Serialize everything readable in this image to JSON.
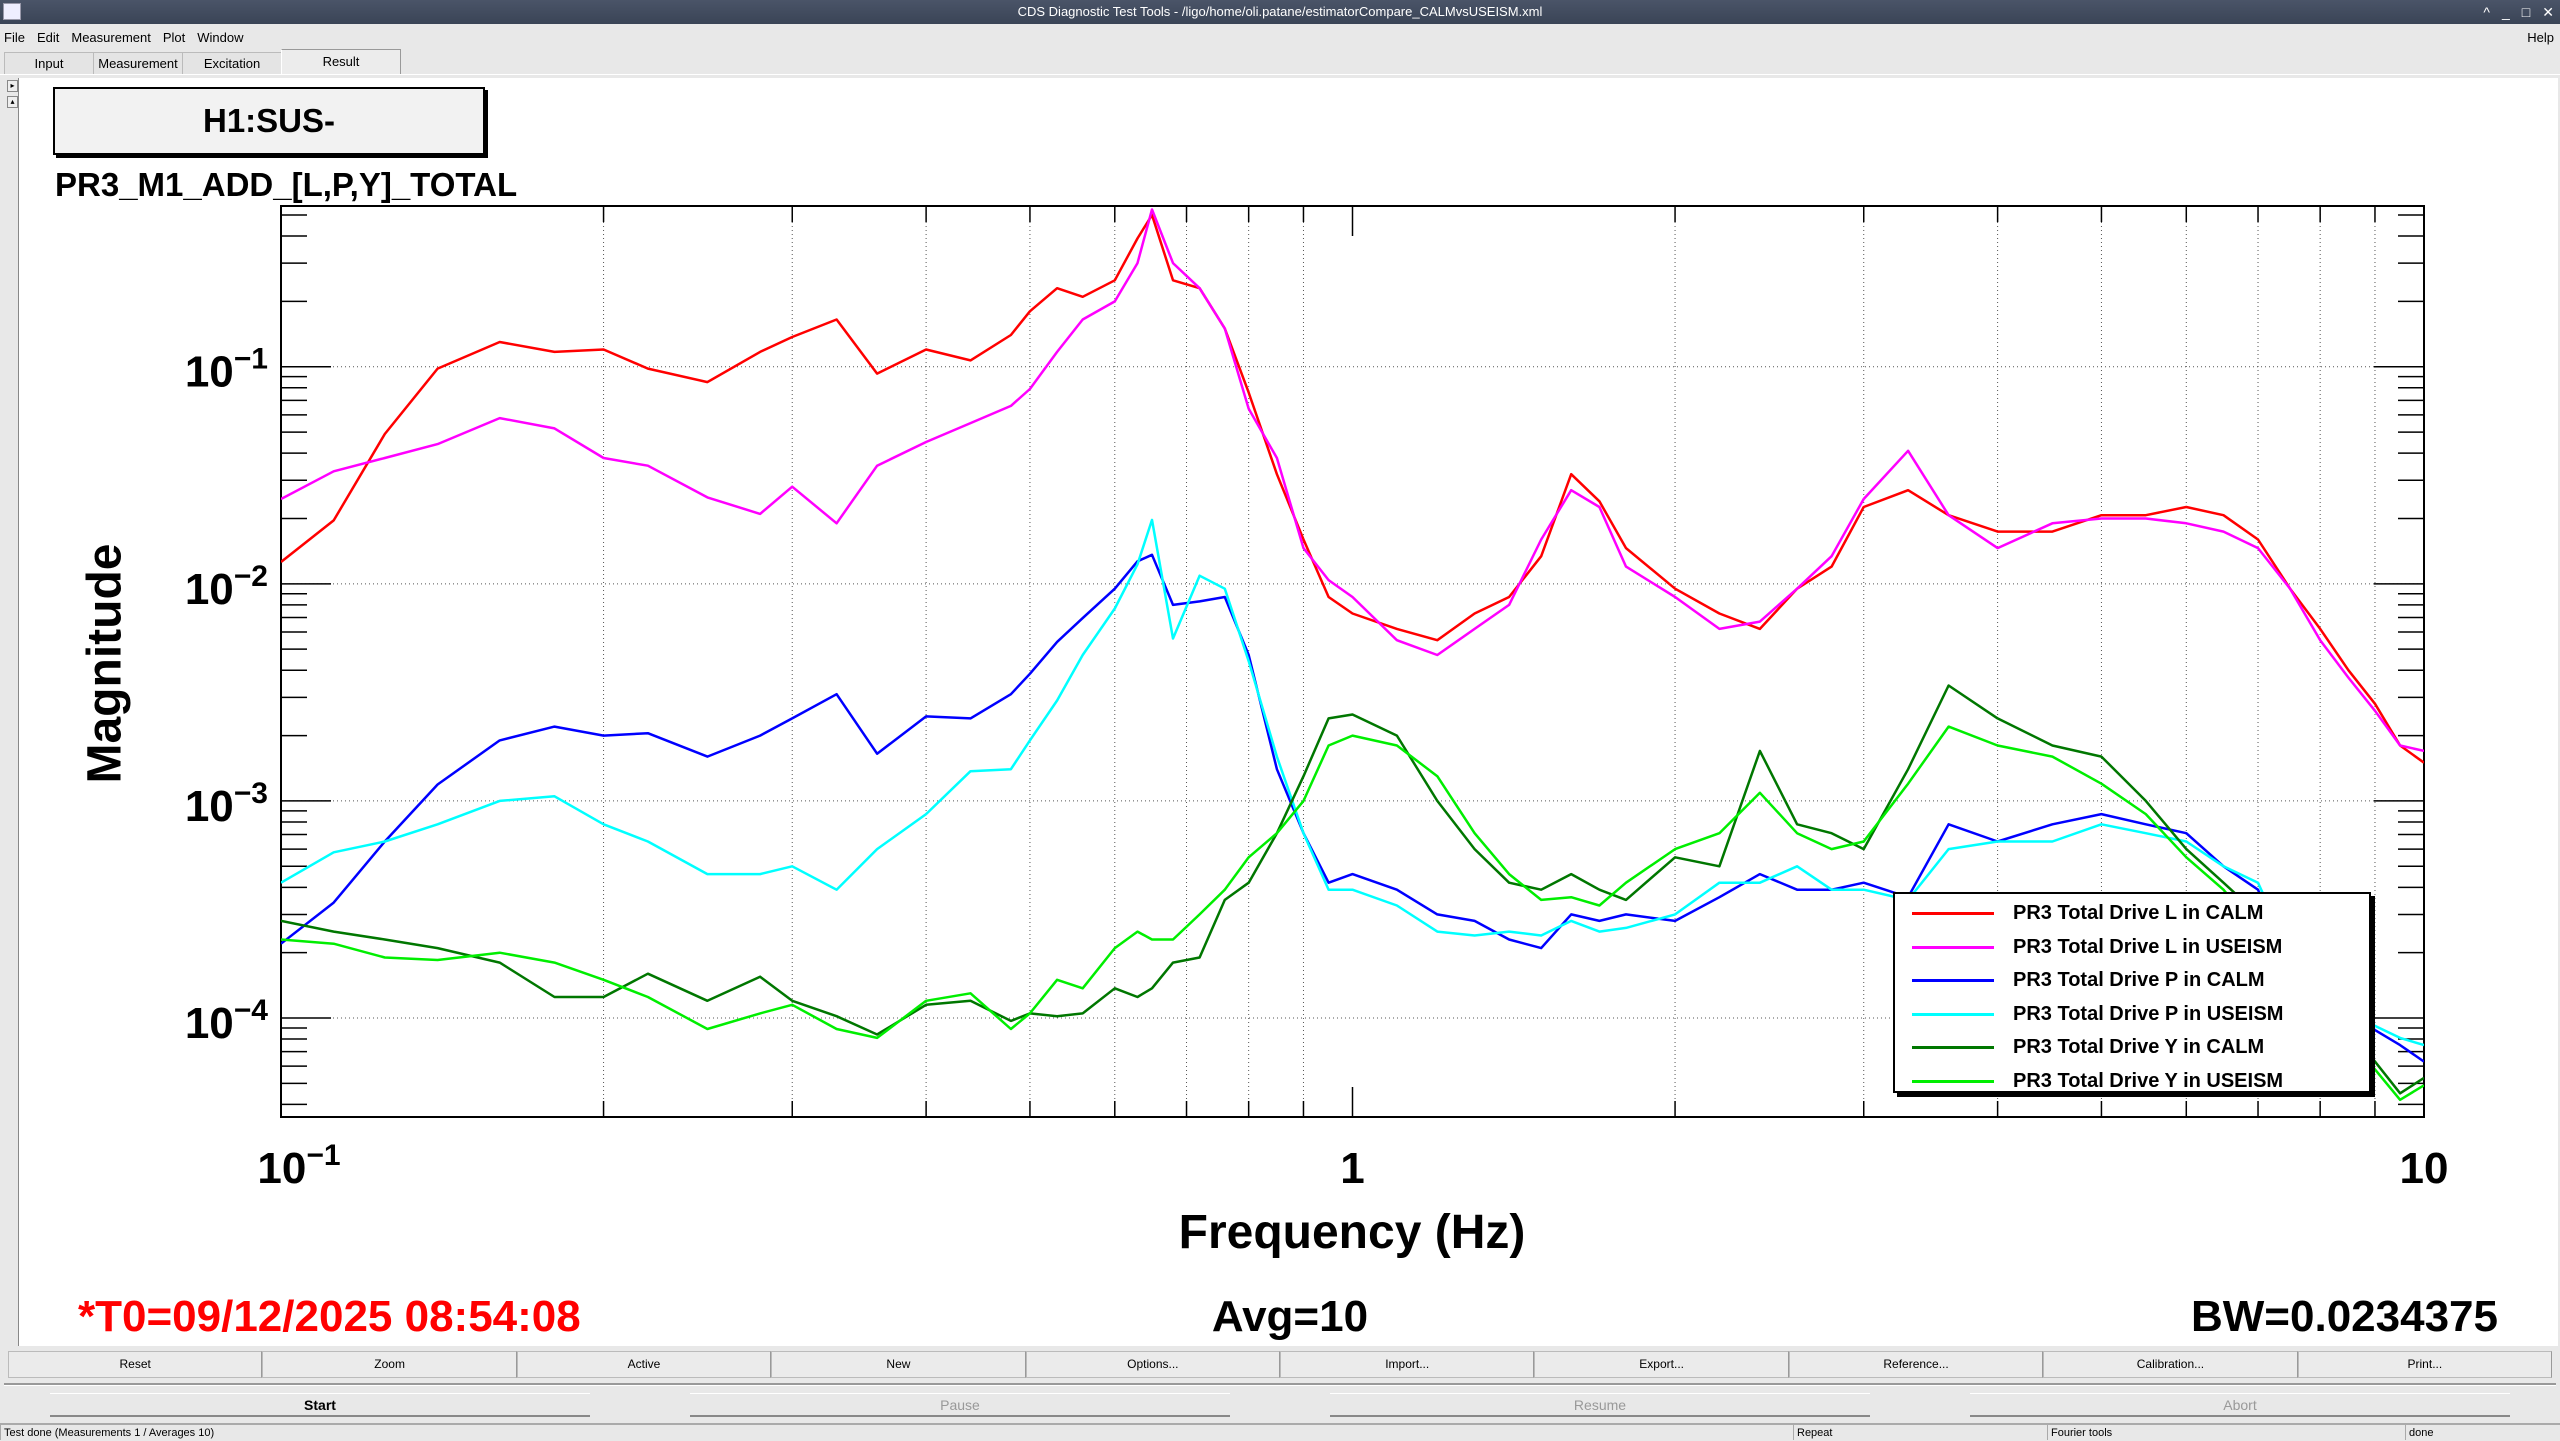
{
  "window": {
    "title": "CDS Diagnostic Test Tools - /ligo/home/oli.patane/estimatorCompare_CALMvsUSEISM.xml",
    "controls": [
      "^",
      "_",
      "□",
      "✕"
    ]
  },
  "menu": {
    "items": [
      "File",
      "Edit",
      "Measurement",
      "Plot",
      "Window"
    ],
    "help": "Help"
  },
  "tabs": [
    {
      "label": "Input"
    },
    {
      "label": "Measurement"
    },
    {
      "label": "Excitation"
    },
    {
      "label": "Result",
      "selected": true
    }
  ],
  "plot_title": "H1:SUS-PR3_M1_ADD_[L,P,Y]_TOTAL",
  "footer": {
    "t0": "*T0=09/12/2025 08:54:08",
    "avg": "Avg=10",
    "bw": "BW=0.0234375",
    "t0_color": "#ff0000"
  },
  "buttons": [
    "Reset",
    "Zoom",
    "Active",
    "New",
    "Options...",
    "Import...",
    "Export...",
    "Reference...",
    "Calibration...",
    "Print..."
  ],
  "controls": [
    {
      "label": "Start",
      "enabled": true
    },
    {
      "label": "Pause",
      "enabled": false
    },
    {
      "label": "Resume",
      "enabled": false
    },
    {
      "label": "Abort",
      "enabled": false
    }
  ],
  "status": {
    "message": "Test done (Measurements 1 / Averages 10)",
    "repeat": "Repeat",
    "tool": "Fourier tools",
    "state": "done"
  },
  "chart_data": {
    "type": "line",
    "xscale": "log",
    "yscale": "log",
    "xlabel": "Frequency (Hz)",
    "ylabel": "Magnitude",
    "xlim": [
      0.1,
      10
    ],
    "ylim": [
      3.5e-05,
      0.55
    ],
    "grid": true,
    "legend_position": "bottom-right",
    "x_ticks": [
      {
        "value": 0.1,
        "base": "10",
        "exp": "−1"
      },
      {
        "value": 1,
        "base": "1",
        "exp": ""
      },
      {
        "value": 10,
        "base": "10",
        "exp": ""
      }
    ],
    "y_ticks": [
      {
        "value": 0.1,
        "base": "10",
        "exp": "−1"
      },
      {
        "value": 0.01,
        "base": "10",
        "exp": "−2"
      },
      {
        "value": 0.001,
        "base": "10",
        "exp": "−3"
      },
      {
        "value": 0.0001,
        "base": "10",
        "exp": "−4"
      }
    ],
    "x": [
      0.1,
      0.112,
      0.125,
      0.14,
      0.16,
      0.18,
      0.2,
      0.22,
      0.25,
      0.28,
      0.3,
      0.33,
      0.36,
      0.4,
      0.44,
      0.48,
      0.5,
      0.53,
      0.56,
      0.6,
      0.63,
      0.65,
      0.68,
      0.72,
      0.76,
      0.8,
      0.85,
      0.9,
      0.95,
      1.0,
      1.1,
      1.2,
      1.3,
      1.4,
      1.5,
      1.6,
      1.7,
      1.8,
      2.0,
      2.2,
      2.4,
      2.6,
      2.8,
      3.0,
      3.3,
      3.6,
      4.0,
      4.5,
      5.0,
      5.5,
      6.0,
      6.5,
      7.0,
      7.5,
      8.0,
      8.5,
      9.0,
      9.5,
      10
    ],
    "series": [
      {
        "name": "PR3 Total Drive L in CALM",
        "color": "#ff0000",
        "values": [
          0.0126,
          0.0196,
          0.049,
          0.098,
          0.13,
          0.117,
          0.12,
          0.098,
          0.085,
          0.117,
          0.137,
          0.165,
          0.093,
          0.12,
          0.107,
          0.14,
          0.18,
          0.23,
          0.21,
          0.25,
          0.39,
          0.5,
          0.25,
          0.23,
          0.15,
          0.076,
          0.032,
          0.016,
          0.0087,
          0.0073,
          0.0062,
          0.0055,
          0.0073,
          0.0087,
          0.0134,
          0.032,
          0.024,
          0.0146,
          0.0095,
          0.0073,
          0.0062,
          0.0095,
          0.012,
          0.0226,
          0.027,
          0.0207,
          0.0174,
          0.0174,
          0.0207,
          0.0207,
          0.0226,
          0.0207,
          0.016,
          0.0095,
          0.0062,
          0.004,
          0.0028,
          0.0018,
          0.0015
        ]
      },
      {
        "name": "PR3 Total Drive L in USEISM",
        "color": "#ff00ff",
        "values": [
          0.0246,
          0.033,
          0.038,
          0.044,
          0.058,
          0.052,
          0.038,
          0.035,
          0.025,
          0.021,
          0.028,
          0.019,
          0.035,
          0.045,
          0.055,
          0.066,
          0.079,
          0.117,
          0.165,
          0.2,
          0.3,
          0.53,
          0.3,
          0.23,
          0.15,
          0.064,
          0.038,
          0.0146,
          0.0104,
          0.0087,
          0.0055,
          0.0047,
          0.0062,
          0.008,
          0.016,
          0.027,
          0.0226,
          0.012,
          0.0087,
          0.0062,
          0.0067,
          0.0095,
          0.0134,
          0.0246,
          0.041,
          0.0207,
          0.0146,
          0.019,
          0.02,
          0.02,
          0.019,
          0.0174,
          0.0146,
          0.0095,
          0.0055,
          0.0037,
          0.0026,
          0.0018,
          0.0017
        ]
      },
      {
        "name": "PR3 Total Drive P in CALM",
        "color": "#0000ff",
        "values": [
          0.00022,
          0.00034,
          0.00065,
          0.00119,
          0.0019,
          0.0022,
          0.002,
          0.00205,
          0.0016,
          0.002,
          0.0024,
          0.0031,
          0.00165,
          0.00245,
          0.0024,
          0.0031,
          0.00385,
          0.0054,
          0.00695,
          0.0095,
          0.0127,
          0.0136,
          0.008,
          0.0083,
          0.0087,
          0.0047,
          0.0014,
          0.00071,
          0.00042,
          0.00046,
          0.00039,
          0.0003,
          0.00028,
          0.00023,
          0.00021,
          0.0003,
          0.00028,
          0.0003,
          0.00028,
          0.00036,
          0.00046,
          0.00039,
          0.00039,
          0.00042,
          0.00036,
          0.00078,
          0.00065,
          0.00078,
          0.00087,
          0.00078,
          0.00071,
          0.0005,
          0.00039,
          0.00018,
          0.000137,
          0.000116,
          8.8e-05,
          7.5e-05,
          6.3e-05
        ]
      },
      {
        "name": "PR3 Total Drive P in USEISM",
        "color": "#00ffff",
        "values": [
          0.00042,
          0.00058,
          0.00065,
          0.00078,
          0.001,
          0.00105,
          0.00078,
          0.00065,
          0.00046,
          0.00046,
          0.0005,
          0.00039,
          0.0006,
          0.00087,
          0.00137,
          0.0014,
          0.0019,
          0.0029,
          0.0047,
          0.0077,
          0.0123,
          0.0197,
          0.0056,
          0.0109,
          0.0095,
          0.0044,
          0.0016,
          0.00071,
          0.00039,
          0.00039,
          0.00033,
          0.00025,
          0.00024,
          0.00025,
          0.00024,
          0.00028,
          0.00025,
          0.00026,
          0.0003,
          0.00042,
          0.00042,
          0.0005,
          0.00039,
          0.00039,
          0.00035,
          0.0006,
          0.00065,
          0.00065,
          0.00078,
          0.00071,
          0.00065,
          0.0005,
          0.00042,
          0.0002,
          0.000137,
          0.000105,
          9.2e-05,
          8.1e-05,
          7.5e-05
        ]
      },
      {
        "name": "PR3 Total Drive Y in CALM",
        "color": "#007700",
        "values": [
          0.00028,
          0.00025,
          0.00023,
          0.00021,
          0.00018,
          0.000125,
          0.000125,
          0.00016,
          0.00012,
          0.000155,
          0.00012,
          0.000102,
          8.4e-05,
          0.000115,
          0.00012,
          9.7e-05,
          0.000105,
          0.000102,
          0.000105,
          0.000137,
          0.000125,
          0.000137,
          0.00018,
          0.00019,
          0.00035,
          0.00042,
          0.00071,
          0.0013,
          0.0024,
          0.0025,
          0.002,
          0.001,
          0.0006,
          0.00042,
          0.00039,
          0.00046,
          0.00039,
          0.00035,
          0.00055,
          0.0005,
          0.0017,
          0.00078,
          0.00071,
          0.0006,
          0.0014,
          0.0034,
          0.0024,
          0.0018,
          0.0016,
          0.001,
          0.0006,
          0.00042,
          0.0003,
          0.00018,
          0.000125,
          8.9e-05,
          6.3e-05,
          4.5e-05,
          5.3e-05
        ]
      },
      {
        "name": "PR3 Total Drive Y in USEISM",
        "color": "#00ee00",
        "values": [
          0.00023,
          0.00022,
          0.00019,
          0.000185,
          0.0002,
          0.00018,
          0.00015,
          0.000125,
          8.9e-05,
          0.000105,
          0.000115,
          8.9e-05,
          8.1e-05,
          0.00012,
          0.00013,
          8.9e-05,
          0.000105,
          0.00015,
          0.000137,
          0.00021,
          0.00025,
          0.00023,
          0.00023,
          0.0003,
          0.00039,
          0.00055,
          0.00071,
          0.001,
          0.0018,
          0.002,
          0.0018,
          0.0013,
          0.00071,
          0.00046,
          0.00035,
          0.00036,
          0.00033,
          0.00042,
          0.0006,
          0.00071,
          0.00109,
          0.00071,
          0.0006,
          0.00065,
          0.0012,
          0.0022,
          0.0018,
          0.0016,
          0.0012,
          0.00087,
          0.00055,
          0.00039,
          0.00025,
          0.00016,
          0.000115,
          8.1e-05,
          5.8e-05,
          4.2e-05,
          4.9e-05
        ]
      }
    ]
  }
}
